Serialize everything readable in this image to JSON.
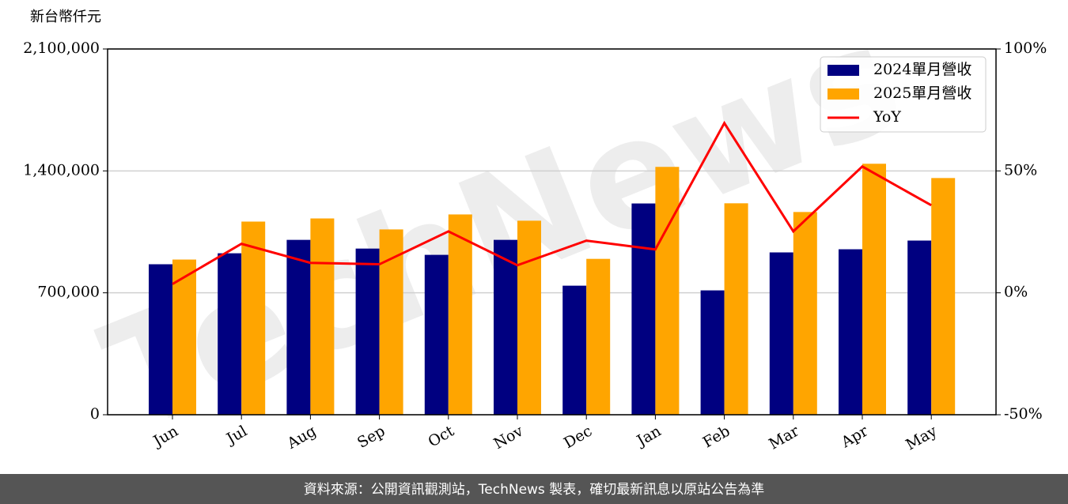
{
  "chart_data": {
    "type": "bar",
    "y_label": "新台幣仟元",
    "watermark": "TechNews",
    "footer": "資料來源：公開資訊觀測站，TechNews 製表，確切最新訊息以原站公告為準",
    "categories": [
      "Jun",
      "Jul",
      "Aug",
      "Sep",
      "Oct",
      "Nov",
      "Dec",
      "Jan",
      "Feb",
      "Mar",
      "Apr",
      "May"
    ],
    "series": [
      {
        "name": "2024單月營收",
        "color": "#000080",
        "type": "bar",
        "values": [
          864000,
          927000,
          1004000,
          954000,
          918000,
          1004000,
          741000,
          1213000,
          714000,
          932000,
          950000,
          1000000
        ]
      },
      {
        "name": "2025單月營收",
        "color": "#ffa500",
        "type": "bar",
        "values": [
          891000,
          1109000,
          1127000,
          1064000,
          1150000,
          1114000,
          895000,
          1423000,
          1214000,
          1164000,
          1441000,
          1359000
        ]
      },
      {
        "name": "YoY",
        "color": "#ff0000",
        "type": "line",
        "axis": "y2",
        "values": [
          3.6,
          20.1,
          12.3,
          11.7,
          25.2,
          11.3,
          21.4,
          17.8,
          69.6,
          25.2,
          51.8,
          35.9
        ]
      }
    ],
    "ylim": [
      0,
      2100000
    ],
    "yticks": [
      0,
      {
        "value": 700000,
        "label": "700,000"
      },
      {
        "value": 1400000,
        "label": "1,400,000"
      },
      {
        "value": 2100000,
        "label": "2,100,000"
      }
    ],
    "y2lim": [
      -50,
      100
    ],
    "y2ticks": [
      {
        "value": -50,
        "label": "-50%"
      },
      {
        "value": 0,
        "label": "0%"
      },
      {
        "value": 50,
        "label": "50%"
      },
      {
        "value": 100,
        "label": "100%"
      }
    ],
    "grid": true,
    "legend": "upper right"
  }
}
